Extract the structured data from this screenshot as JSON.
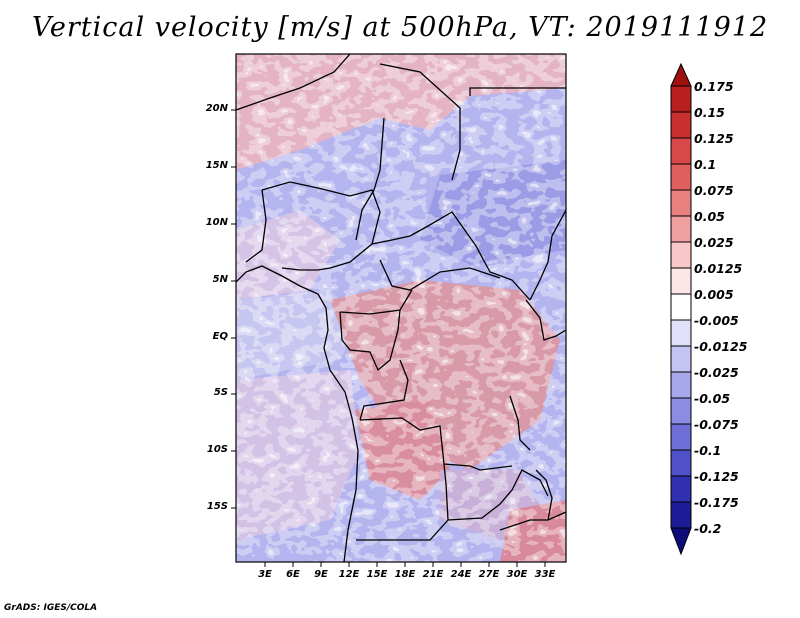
{
  "title": "Vertical velocity [m/s] at 500hPa, VT: 2019111912",
  "map": {
    "lat_ticks": [
      "20N",
      "15N",
      "10N",
      "5N",
      "EQ",
      "5S",
      "10S",
      "15S"
    ],
    "lon_ticks": [
      "3E",
      "6E",
      "9E",
      "12E",
      "15E",
      "18E",
      "21E",
      "24E",
      "27E",
      "30E",
      "33E"
    ],
    "field": "vertical velocity",
    "region": "Central Africa"
  },
  "colorbar": {
    "levels": [
      "0.175",
      "0.15",
      "0.125",
      "0.1",
      "0.075",
      "0.05",
      "0.025",
      "0.0125",
      "0.005",
      "-0.005",
      "-0.0125",
      "-0.025",
      "-0.05",
      "-0.075",
      "-0.1",
      "-0.125",
      "-0.175",
      "-0.2"
    ],
    "colors": [
      "#a01010",
      "#b82020",
      "#c83030",
      "#d84848",
      "#e06060",
      "#e88080",
      "#f0a0a0",
      "#f8c8c8",
      "#fde6e6",
      "#ffffff",
      "#e0e0fa",
      "#c4c4f2",
      "#a8a8ec",
      "#8c8ce4",
      "#6e6ed8",
      "#5050c8",
      "#3030b0",
      "#1c1c96",
      "#0c0c7a"
    ]
  },
  "footer": "GrADS: IGES/COLA"
}
